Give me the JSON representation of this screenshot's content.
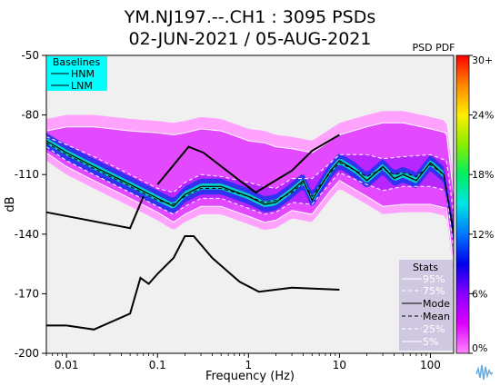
{
  "chart_data": {
    "type": "heatmap",
    "title_line1": "YM.NJ197.--.CH1 : 3095 PSDs",
    "title_line2": "02-JUN-2021 / 05-AUG-2021",
    "xlabel": "Frequency (Hz)",
    "ylabel": "dB",
    "x_scale": "log",
    "xlim": [
      0.006,
      180
    ],
    "ylim": [
      -200,
      -50
    ],
    "x_ticks": [
      {
        "value": 0.01,
        "label": "0.01"
      },
      {
        "value": 0.1,
        "label": "0.1"
      },
      {
        "value": 1,
        "label": "1"
      },
      {
        "value": 10,
        "label": "10"
      },
      {
        "value": 100,
        "label": "100"
      }
    ],
    "y_ticks": [
      {
        "value": -50,
        "label": "-50"
      },
      {
        "value": -80,
        "label": "-80"
      },
      {
        "value": -110,
        "label": "-110"
      },
      {
        "value": -140,
        "label": "-140"
      },
      {
        "value": -170,
        "label": "-170"
      },
      {
        "value": -200,
        "label": "-200"
      }
    ],
    "colorbar": {
      "title": "PSD PDF",
      "labels": [
        "30+",
        "24%",
        "18%",
        "12%",
        "6%",
        "0%"
      ],
      "colors": [
        "#ff0000",
        "#ff8800",
        "#ffee00",
        "#88ee00",
        "#00ee66",
        "#00e5e5",
        "#0077ff",
        "#0000ee",
        "#8800ff",
        "#dd00ff",
        "#ff88ff"
      ]
    },
    "baselines_legend": {
      "title": "Baselines",
      "entries": [
        "HNM",
        "LNM"
      ],
      "bg_color": "#00ffff"
    },
    "stats_legend": {
      "title": "Stats",
      "entries": [
        "95%",
        "75%",
        "Mode",
        "Mean",
        "25%",
        "5%"
      ],
      "bg_color": "#d0c8e0"
    },
    "hnm": {
      "x": [
        0.1,
        0.22,
        0.32,
        0.8,
        1.2,
        3,
        5,
        10
      ],
      "y": [
        -115,
        -96,
        -99,
        -113,
        -119,
        -108,
        -98,
        -90
      ]
    },
    "lnm": {
      "x": [
        0.006,
        0.01,
        0.02,
        0.05,
        0.065,
        0.08,
        0.1,
        0.15,
        0.2,
        0.25,
        0.4,
        0.8,
        1.3,
        3,
        10
      ],
      "y": [
        -186,
        -186,
        -188,
        -180,
        -162,
        -165,
        -160,
        -152,
        -141,
        -141,
        -152,
        -164,
        -169,
        -167,
        -168
      ]
    },
    "hnm_low": {
      "x": [
        0.006,
        0.05,
        0.07
      ],
      "y": [
        -129,
        -137,
        -121
      ]
    },
    "mode": {
      "x": [
        0.006,
        0.01,
        0.02,
        0.05,
        0.1,
        0.15,
        0.2,
        0.3,
        0.5,
        1,
        1.5,
        2,
        3,
        4,
        5,
        6,
        8,
        10,
        15,
        20,
        30,
        40,
        50,
        70,
        100,
        140,
        180
      ],
      "y": [
        -93,
        -99,
        -106,
        -115,
        -122,
        -126,
        -120,
        -116,
        -116,
        -121,
        -125,
        -124,
        -118,
        -113,
        -123,
        -117,
        -108,
        -103,
        -108,
        -113,
        -106,
        -112,
        -110,
        -113,
        -104,
        -110,
        -140
      ]
    },
    "mean": {
      "x": [
        0.006,
        0.01,
        0.02,
        0.05,
        0.1,
        0.15,
        0.2,
        0.3,
        0.5,
        1,
        1.5,
        2,
        3,
        4,
        5,
        6,
        8,
        10,
        15,
        20,
        30,
        40,
        50,
        70,
        100,
        140,
        180
      ],
      "y": [
        -94,
        -100,
        -107,
        -116,
        -123,
        -125,
        -121,
        -117,
        -117,
        -121,
        -124,
        -123,
        -119,
        -114,
        -121,
        -116,
        -109,
        -104,
        -108,
        -111,
        -107,
        -110,
        -109,
        -111,
        -105,
        -110,
        -138
      ]
    },
    "p95": {
      "x": [
        0.006,
        0.01,
        0.02,
        0.05,
        0.1,
        0.15,
        0.2,
        0.3,
        0.5,
        1,
        1.5,
        2,
        3,
        5,
        8,
        10,
        20,
        30,
        50,
        100,
        150,
        180
      ],
      "y": [
        -88,
        -86,
        -86,
        -88,
        -89,
        -90,
        -89,
        -87,
        -88,
        -93,
        -94,
        -96,
        -97,
        -99,
        -93,
        -90,
        -86,
        -84,
        -84,
        -87,
        -89,
        -120
      ]
    },
    "p75": {
      "x": [
        0.006,
        0.01,
        0.02,
        0.05,
        0.1,
        0.15,
        0.2,
        0.3,
        0.5,
        1,
        1.5,
        2,
        3,
        5,
        8,
        10,
        20,
        30,
        50,
        100,
        150,
        180
      ],
      "y": [
        -91,
        -95,
        -101,
        -110,
        -117,
        -119,
        -114,
        -110,
        -111,
        -114,
        -116,
        -117,
        -112,
        -112,
        -104,
        -100,
        -100,
        -102,
        -101,
        -100,
        -103,
        -130
      ]
    },
    "p25": {
      "x": [
        0.006,
        0.01,
        0.02,
        0.05,
        0.1,
        0.15,
        0.2,
        0.3,
        0.5,
        1,
        1.5,
        2,
        3,
        5,
        8,
        10,
        20,
        30,
        50,
        100,
        150,
        180
      ],
      "y": [
        -96,
        -103,
        -110,
        -119,
        -126,
        -130,
        -126,
        -122,
        -122,
        -127,
        -130,
        -129,
        -124,
        -125,
        -114,
        -109,
        -115,
        -118,
        -116,
        -116,
        -118,
        -148
      ]
    },
    "p5": {
      "x": [
        0.006,
        0.01,
        0.02,
        0.05,
        0.1,
        0.15,
        0.2,
        0.3,
        0.5,
        1,
        1.5,
        2,
        3,
        5,
        8,
        10,
        20,
        30,
        50,
        100,
        150,
        180
      ],
      "y": [
        -99,
        -106,
        -113,
        -122,
        -129,
        -134,
        -130,
        -126,
        -126,
        -131,
        -134,
        -133,
        -128,
        -130,
        -118,
        -113,
        -121,
        -126,
        -125,
        -125,
        -127,
        -155
      ]
    }
  }
}
